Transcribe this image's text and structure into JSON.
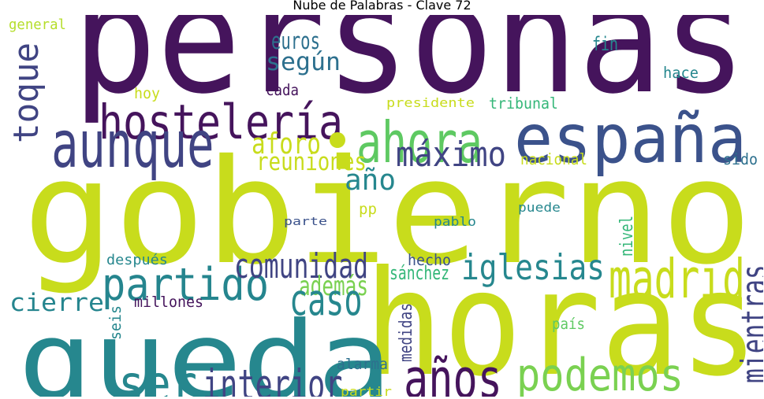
{
  "title": "Nube de Palabras - Clave 72",
  "words": {
    "personas": {
      "text": "personas",
      "color": "#45145c"
    },
    "gobierno": {
      "text": "gobierno",
      "color": "#c8dc1c"
    },
    "horas": {
      "text": "horas",
      "color": "#c8dc1c"
    },
    "queda": {
      "text": "queda",
      "color": "#26878e"
    },
    "espana": {
      "text": "españa",
      "color": "#3b528b"
    },
    "hosteleria": {
      "text": "hostelería",
      "color": "#45145c"
    },
    "ahora": {
      "text": "ahora",
      "color": "#5ec962"
    },
    "aunque": {
      "text": "aunque",
      "color": "#404483"
    },
    "toque": {
      "text": "toque",
      "color": "#404483"
    },
    "partido": {
      "text": "partido",
      "color": "#25858e"
    },
    "madrid": {
      "text": "madrid",
      "color": "#c8dc1c"
    },
    "iglesias": {
      "text": "iglesias",
      "color": "#26878e"
    },
    "anos": {
      "text": "años",
      "color": "#45145c"
    },
    "podemos": {
      "text": "podemos",
      "color": "#7ad151"
    },
    "ser": {
      "text": "ser",
      "color": "#26878e"
    },
    "interior": {
      "text": "interior",
      "color": "#404483"
    },
    "mientras": {
      "text": "mientras",
      "color": "#404483"
    },
    "maximo": {
      "text": "máximo",
      "color": "#404483"
    },
    "comunidad": {
      "text": "comunidad",
      "color": "#404483"
    },
    "segun": {
      "text": "según",
      "color": "#2d708e"
    },
    "aforo": {
      "text": "aforo",
      "color": "#c8dc1c"
    },
    "reuniones": {
      "text": "reuniones",
      "color": "#c8dc1c"
    },
    "ano": {
      "text": "año",
      "color": "#26878e"
    },
    "ademas": {
      "text": "además",
      "color": "#7ad151"
    },
    "caso": {
      "text": "caso",
      "color": "#26878e"
    },
    "cierre": {
      "text": "cierre",
      "color": "#25858e"
    },
    "general": {
      "text": "general",
      "color": "#b5de2b"
    },
    "euros": {
      "text": "euros",
      "color": "#2d708e"
    },
    "fin": {
      "text": "fin",
      "color": "#26878e"
    },
    "hace": {
      "text": "hace",
      "color": "#26878e"
    },
    "hoy": {
      "text": "hoy",
      "color": "#c8dc1c"
    },
    "cada": {
      "text": "cada",
      "color": "#45145c"
    },
    "presidente": {
      "text": "presidente",
      "color": "#c8dc1c"
    },
    "tribunal": {
      "text": "tribunal",
      "color": "#35b779"
    },
    "nacional": {
      "text": "nacional",
      "color": "#c8dc1c"
    },
    "sido": {
      "text": "sido",
      "color": "#2d708e"
    },
    "pp": {
      "text": "pp",
      "color": "#c8dc1c"
    },
    "parte": {
      "text": "parte",
      "color": "#3b528b"
    },
    "pablo": {
      "text": "pablo",
      "color": "#26878e"
    },
    "puede": {
      "text": "puede",
      "color": "#26878e"
    },
    "nivel": {
      "text": "nivel",
      "color": "#35b779"
    },
    "despues": {
      "text": "después",
      "color": "#26878e"
    },
    "hecho": {
      "text": "hecho",
      "color": "#3b528b"
    },
    "sanchez": {
      "text": "sánchez",
      "color": "#35b779"
    },
    "millones": {
      "text": "millones",
      "color": "#45145c"
    },
    "seis": {
      "text": "seis",
      "color": "#26878e"
    },
    "medidas": {
      "text": "medidas",
      "color": "#404483"
    },
    "pais": {
      "text": "país",
      "color": "#5ec962"
    },
    "alarma": {
      "text": "alarma",
      "color": "#2d708e"
    },
    "partir": {
      "text": "partir",
      "color": "#c8dc1c"
    }
  }
}
